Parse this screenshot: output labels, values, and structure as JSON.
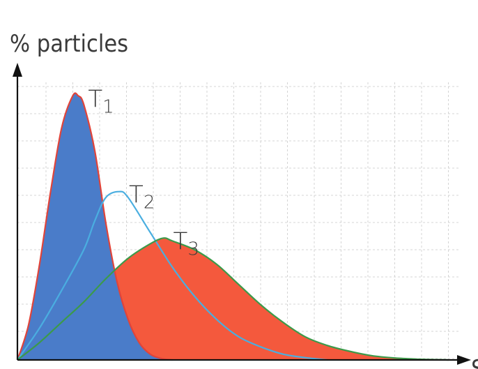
{
  "chart_data": {
    "type": "area",
    "ylabel": "% particles",
    "xlabel": "S",
    "xlim": [
      0,
      20
    ],
    "ylim": [
      0,
      1
    ],
    "grid": true,
    "series": [
      {
        "name": "T1",
        "label_main": "T",
        "label_sub": "1",
        "peak_x": 2.75,
        "peak_y": 0.91,
        "fill": "#4a7cc9",
        "stroke": "#e0443a",
        "filled": true,
        "x": [
          0,
          0.5,
          1,
          1.5,
          2,
          2.5,
          2.75,
          3,
          3.5,
          4,
          4.5,
          5,
          5.5,
          6,
          6.5,
          7
        ],
        "y": [
          0,
          0.12,
          0.33,
          0.58,
          0.8,
          0.91,
          0.91,
          0.88,
          0.72,
          0.47,
          0.27,
          0.14,
          0.06,
          0.02,
          0.005,
          0
        ]
      },
      {
        "name": "T2",
        "label_main": "T",
        "label_sub": "2",
        "peak_x": 4.6,
        "peak_y": 0.58,
        "fill": "none",
        "stroke": "#4aaee0",
        "filled": false,
        "x": [
          0,
          1,
          2,
          3,
          3.5,
          4,
          4.6,
          5,
          6,
          7,
          8,
          9,
          10,
          11,
          12,
          13,
          14
        ],
        "y": [
          0,
          0.11,
          0.24,
          0.38,
          0.48,
          0.56,
          0.58,
          0.56,
          0.44,
          0.32,
          0.22,
          0.14,
          0.08,
          0.045,
          0.02,
          0.008,
          0
        ]
      },
      {
        "name": "T3",
        "label_main": "T",
        "label_sub": "3",
        "peak_x": 6.6,
        "peak_y": 0.42,
        "fill": "#f4593d",
        "stroke": "#3c9a4a",
        "filled": true,
        "x": [
          0,
          1,
          2,
          3,
          4,
          5,
          6,
          6.6,
          7,
          8,
          9,
          10,
          11,
          12,
          13,
          14,
          15,
          16,
          17,
          18,
          19,
          19.5
        ],
        "y": [
          0,
          0.06,
          0.13,
          0.2,
          0.28,
          0.35,
          0.4,
          0.42,
          0.41,
          0.38,
          0.33,
          0.26,
          0.19,
          0.13,
          0.08,
          0.05,
          0.03,
          0.015,
          0.007,
          0.003,
          0.001,
          0
        ]
      }
    ]
  }
}
